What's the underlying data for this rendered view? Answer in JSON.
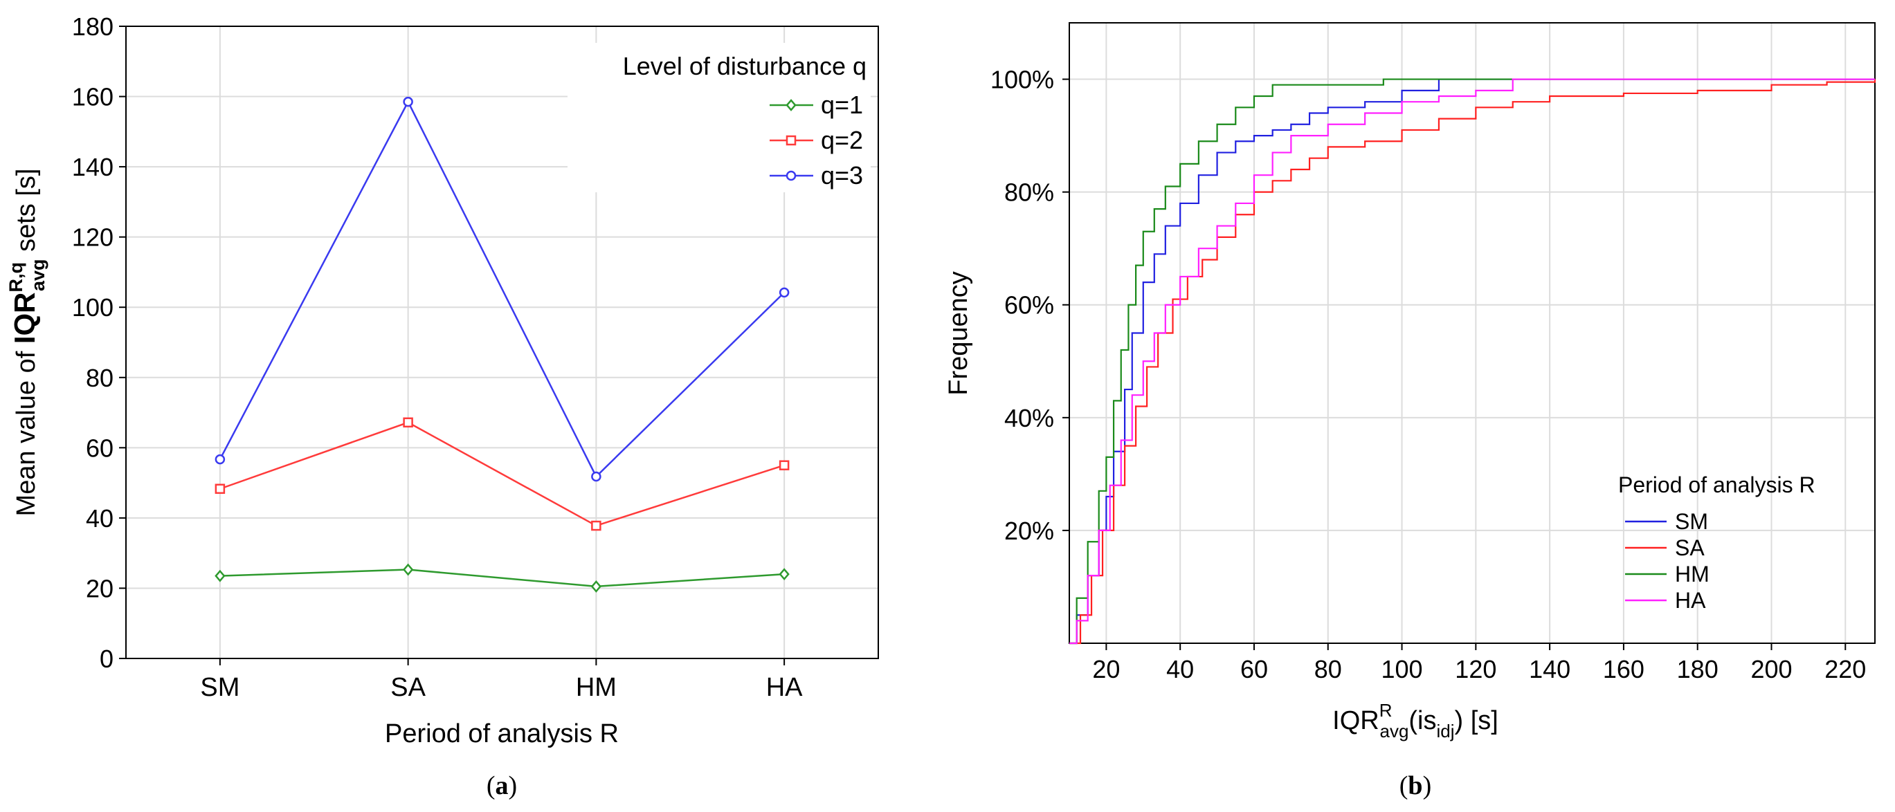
{
  "chart_data": [
    {
      "type": "line",
      "panel_label": "a",
      "xlabel": "Period of analysis R",
      "ylabel": {
        "prefix": "Mean value of ",
        "symbol": "IQR",
        "sup": "R,q",
        "sub": "avg",
        "suffix": " sets [s]"
      },
      "categories": [
        "SM",
        "SA",
        "HM",
        "HA"
      ],
      "yticks": [
        "0",
        "20",
        "40",
        "60",
        "80",
        "100",
        "120",
        "140",
        "160",
        "180"
      ],
      "ylim": [
        0,
        180
      ],
      "grid": true,
      "legend_title": "Level of disturbance q",
      "legend_position": "top-right",
      "series": [
        {
          "name": "q=1",
          "values": [
            23.5,
            25.3,
            20.5,
            24.0
          ],
          "color": "#2e9a2e",
          "marker": "diamond"
        },
        {
          "name": "q=2",
          "values": [
            48.3,
            67.2,
            37.8,
            55.0
          ],
          "color": "#ff3b3b",
          "marker": "square"
        },
        {
          "name": "q=3",
          "values": [
            56.7,
            158.5,
            51.8,
            104.2
          ],
          "color": "#3a3af0",
          "marker": "circle"
        }
      ]
    },
    {
      "type": "line",
      "subtype": "cumulative-step",
      "panel_label": "b",
      "xlabel": {
        "symbol": "IQR",
        "sup": "R",
        "sub": "avg",
        "arg_pre": "(is",
        "arg_sub": "idj",
        "suffix": ") [s]"
      },
      "ylabel": "Frequency",
      "xticks": [
        "20",
        "40",
        "60",
        "80",
        "100",
        "120",
        "140",
        "160",
        "180",
        "200",
        "220"
      ],
      "yticks": [
        "20%",
        "40%",
        "60%",
        "80%",
        "100%"
      ],
      "xlim": [
        10,
        228
      ],
      "ylim": [
        0,
        110
      ],
      "grid": true,
      "legend_title": "Period of analysis R",
      "legend_position": "bottom-right",
      "series": [
        {
          "name": "SM",
          "color": "#2020e0",
          "points": [
            [
              10,
              0
            ],
            [
              12,
              5
            ],
            [
              15,
              12
            ],
            [
              18,
              20
            ],
            [
              20,
              26
            ],
            [
              22,
              34
            ],
            [
              25,
              45
            ],
            [
              27,
              55
            ],
            [
              30,
              64
            ],
            [
              33,
              69
            ],
            [
              36,
              74
            ],
            [
              40,
              78
            ],
            [
              45,
              83
            ],
            [
              50,
              87
            ],
            [
              55,
              89
            ],
            [
              60,
              90
            ],
            [
              65,
              91
            ],
            [
              70,
              92
            ],
            [
              75,
              94
            ],
            [
              80,
              95
            ],
            [
              90,
              96
            ],
            [
              100,
              98
            ],
            [
              110,
              100
            ],
            [
              228,
              100
            ]
          ]
        },
        {
          "name": "SA",
          "color": "#ff2020",
          "points": [
            [
              10,
              0
            ],
            [
              13,
              5
            ],
            [
              16,
              12
            ],
            [
              19,
              20
            ],
            [
              22,
              28
            ],
            [
              25,
              35
            ],
            [
              28,
              42
            ],
            [
              31,
              49
            ],
            [
              34,
              55
            ],
            [
              38,
              61
            ],
            [
              42,
              65
            ],
            [
              46,
              68
            ],
            [
              50,
              72
            ],
            [
              55,
              76
            ],
            [
              60,
              80
            ],
            [
              65,
              82
            ],
            [
              70,
              84
            ],
            [
              75,
              86
            ],
            [
              80,
              88
            ],
            [
              90,
              89
            ],
            [
              100,
              91
            ],
            [
              110,
              93
            ],
            [
              120,
              95
            ],
            [
              130,
              96
            ],
            [
              140,
              97
            ],
            [
              160,
              97.5
            ],
            [
              180,
              98
            ],
            [
              200,
              99
            ],
            [
              215,
              99.5
            ],
            [
              228,
              100
            ]
          ]
        },
        {
          "name": "HM",
          "color": "#1a8a1a",
          "points": [
            [
              10,
              0
            ],
            [
              12,
              8
            ],
            [
              15,
              18
            ],
            [
              18,
              27
            ],
            [
              20,
              33
            ],
            [
              22,
              43
            ],
            [
              24,
              52
            ],
            [
              26,
              60
            ],
            [
              28,
              67
            ],
            [
              30,
              73
            ],
            [
              33,
              77
            ],
            [
              36,
              81
            ],
            [
              40,
              85
            ],
            [
              45,
              89
            ],
            [
              50,
              92
            ],
            [
              55,
              95
            ],
            [
              60,
              97
            ],
            [
              65,
              99
            ],
            [
              90,
              99
            ],
            [
              95,
              100
            ],
            [
              228,
              100
            ]
          ]
        },
        {
          "name": "HA",
          "color": "#ff20ff",
          "points": [
            [
              10,
              0
            ],
            [
              12,
              4
            ],
            [
              15,
              12
            ],
            [
              18,
              20
            ],
            [
              21,
              28
            ],
            [
              24,
              36
            ],
            [
              27,
              44
            ],
            [
              30,
              50
            ],
            [
              33,
              55
            ],
            [
              36,
              60
            ],
            [
              40,
              65
            ],
            [
              45,
              70
            ],
            [
              50,
              74
            ],
            [
              55,
              78
            ],
            [
              60,
              83
            ],
            [
              65,
              87
            ],
            [
              70,
              90
            ],
            [
              80,
              92
            ],
            [
              90,
              94
            ],
            [
              100,
              96
            ],
            [
              110,
              97
            ],
            [
              120,
              98
            ],
            [
              130,
              100
            ],
            [
              228,
              100
            ]
          ]
        }
      ]
    }
  ]
}
